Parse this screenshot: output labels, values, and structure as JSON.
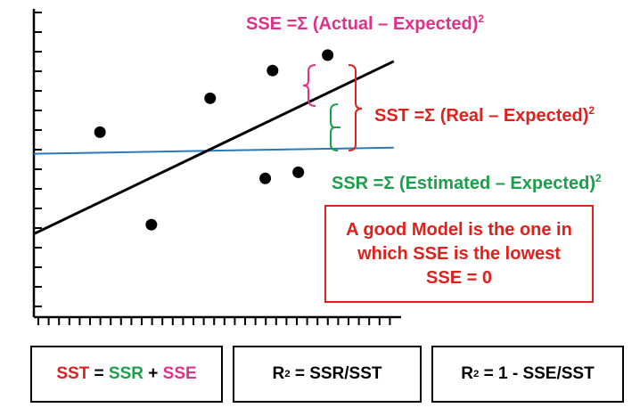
{
  "colors": {
    "sse": "#e0308a",
    "sst": "#e0201c",
    "ssr": "#1aa04a",
    "baseline": "#2a7ab8",
    "regression": "#000000"
  },
  "labels": {
    "sse": {
      "text": "SSE =Σ (Actual – Expected)",
      "sup": "2"
    },
    "sst": {
      "text": "SST =Σ (Real – Expected)",
      "sup": "2"
    },
    "ssr": {
      "text": "SSR =Σ (Estimated – Expected)",
      "sup": "2"
    }
  },
  "note": {
    "line1": "A good Model is the one in",
    "line2": "which SSE is the lowest",
    "line3": "SSE = 0"
  },
  "formulas": {
    "f1": {
      "sst": "SST",
      "eq": " = ",
      "ssr": "SSR",
      "plus": " + ",
      "sse": "SSE"
    },
    "f2": {
      "r": "R",
      "sup": "2",
      "rest": " = SSR/SST"
    },
    "f3": {
      "r": "R",
      "sup": "2",
      "rest": " = 1 - SSE/SST"
    }
  },
  "chart_data": {
    "type": "scatter",
    "xlim": [
      0,
      100
    ],
    "ylim": [
      0,
      100
    ],
    "points": [
      {
        "x": 18,
        "y": 60
      },
      {
        "x": 32,
        "y": 30
      },
      {
        "x": 48,
        "y": 71
      },
      {
        "x": 65,
        "y": 80
      },
      {
        "x": 63,
        "y": 45
      },
      {
        "x": 72,
        "y": 47
      },
      {
        "x": 80,
        "y": 85
      }
    ],
    "regression_line": {
      "x": [
        0,
        98
      ],
      "y": [
        27,
        83
      ]
    },
    "mean_line": {
      "x": [
        0,
        98
      ],
      "y": [
        53,
        55
      ]
    }
  }
}
